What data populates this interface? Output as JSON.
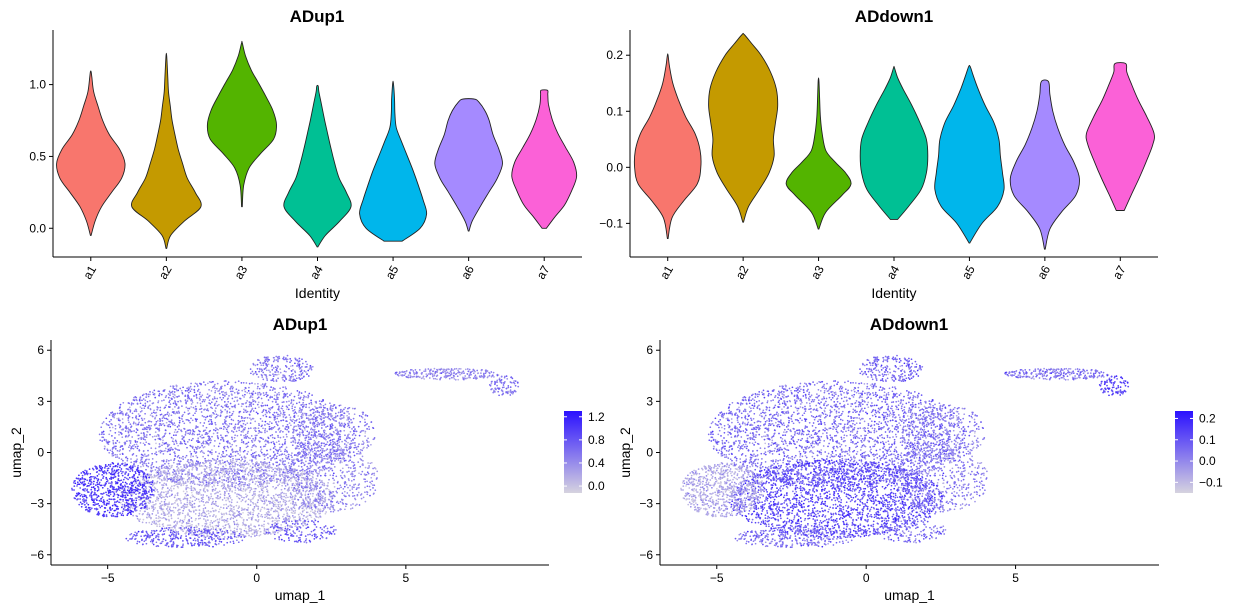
{
  "chart_data": [
    {
      "type": "violin",
      "title": "ADup1",
      "xlabel": "Identity",
      "ylabel": "",
      "ylim": [
        -0.2,
        1.38
      ],
      "yticks": [
        "0.0",
        "0.5",
        "1.0"
      ],
      "ytick_values": [
        0.0,
        0.5,
        1.0
      ],
      "categories": [
        "a1",
        "a2",
        "a3",
        "a4",
        "a5",
        "a6",
        "a7"
      ],
      "colors": [
        "#F8766D",
        "#C49A00",
        "#53B400",
        "#00C094",
        "#00B6EB",
        "#A58AFF",
        "#FB61D7"
      ],
      "violins": [
        {
          "label": "a1",
          "min": -0.05,
          "max": 1.09,
          "profile": [
            [
              -0.05,
              0.01
            ],
            [
              0.05,
              0.12
            ],
            [
              0.15,
              0.3
            ],
            [
              0.25,
              0.58
            ],
            [
              0.35,
              0.86
            ],
            [
              0.45,
              0.95
            ],
            [
              0.55,
              0.8
            ],
            [
              0.65,
              0.52
            ],
            [
              0.75,
              0.33
            ],
            [
              0.85,
              0.2
            ],
            [
              0.95,
              0.08
            ],
            [
              1.05,
              0.03
            ],
            [
              1.09,
              0.01
            ]
          ]
        },
        {
          "label": "a2",
          "min": -0.14,
          "max": 1.2,
          "profile": [
            [
              -0.14,
              0.01
            ],
            [
              -0.05,
              0.12
            ],
            [
              0.05,
              0.5
            ],
            [
              0.15,
              0.96
            ],
            [
              0.25,
              0.8
            ],
            [
              0.35,
              0.58
            ],
            [
              0.45,
              0.45
            ],
            [
              0.55,
              0.33
            ],
            [
              0.65,
              0.24
            ],
            [
              0.75,
              0.16
            ],
            [
              0.85,
              0.11
            ],
            [
              0.95,
              0.06
            ],
            [
              1.05,
              0.04
            ],
            [
              1.2,
              0.01
            ]
          ]
        },
        {
          "label": "a3",
          "min": 0.15,
          "max": 1.29,
          "profile": [
            [
              0.15,
              0.01
            ],
            [
              0.3,
              0.05
            ],
            [
              0.42,
              0.2
            ],
            [
              0.52,
              0.52
            ],
            [
              0.62,
              0.88
            ],
            [
              0.72,
              0.96
            ],
            [
              0.82,
              0.86
            ],
            [
              0.92,
              0.66
            ],
            [
              1.02,
              0.44
            ],
            [
              1.1,
              0.26
            ],
            [
              1.2,
              0.1
            ],
            [
              1.29,
              0.01
            ]
          ]
        },
        {
          "label": "a4",
          "min": -0.13,
          "max": 0.99,
          "profile": [
            [
              -0.13,
              0.01
            ],
            [
              -0.05,
              0.22
            ],
            [
              0.05,
              0.62
            ],
            [
              0.15,
              0.93
            ],
            [
              0.25,
              0.8
            ],
            [
              0.35,
              0.6
            ],
            [
              0.45,
              0.48
            ],
            [
              0.55,
              0.38
            ],
            [
              0.65,
              0.29
            ],
            [
              0.75,
              0.2
            ],
            [
              0.85,
              0.12
            ],
            [
              0.95,
              0.04
            ],
            [
              0.99,
              0.02
            ]
          ]
        },
        {
          "label": "a5",
          "min": -0.09,
          "max": 1.01,
          "profile": [
            [
              -0.09,
              0.25
            ],
            [
              0.0,
              0.75
            ],
            [
              0.1,
              0.93
            ],
            [
              0.2,
              0.83
            ],
            [
              0.3,
              0.7
            ],
            [
              0.4,
              0.56
            ],
            [
              0.5,
              0.4
            ],
            [
              0.6,
              0.24
            ],
            [
              0.7,
              0.09
            ],
            [
              0.8,
              0.05
            ],
            [
              0.9,
              0.04
            ],
            [
              1.01,
              0.01
            ]
          ]
        },
        {
          "label": "a6",
          "min": -0.02,
          "max": 0.9,
          "profile": [
            [
              -0.02,
              0.01
            ],
            [
              0.05,
              0.1
            ],
            [
              0.15,
              0.32
            ],
            [
              0.25,
              0.56
            ],
            [
              0.35,
              0.8
            ],
            [
              0.45,
              0.94
            ],
            [
              0.55,
              0.84
            ],
            [
              0.65,
              0.68
            ],
            [
              0.75,
              0.57
            ],
            [
              0.82,
              0.45
            ],
            [
              0.88,
              0.28
            ],
            [
              0.9,
              0.15
            ]
          ]
        },
        {
          "label": "a7",
          "min": 0.0,
          "max": 0.96,
          "profile": [
            [
              0.0,
              0.06
            ],
            [
              0.08,
              0.3
            ],
            [
              0.16,
              0.56
            ],
            [
              0.26,
              0.76
            ],
            [
              0.36,
              0.9
            ],
            [
              0.46,
              0.82
            ],
            [
              0.56,
              0.6
            ],
            [
              0.66,
              0.38
            ],
            [
              0.76,
              0.22
            ],
            [
              0.86,
              0.12
            ],
            [
              0.93,
              0.1
            ],
            [
              0.96,
              0.09
            ]
          ]
        }
      ]
    },
    {
      "type": "violin",
      "title": "ADdown1",
      "xlabel": "Identity",
      "ylabel": "",
      "ylim": [
        -0.16,
        0.245
      ],
      "yticks": [
        "−0.1",
        "0.0",
        "0.1",
        "0.2"
      ],
      "ytick_values": [
        -0.1,
        0.0,
        0.1,
        0.2
      ],
      "categories": [
        "a1",
        "a2",
        "a3",
        "a4",
        "a5",
        "a6",
        "a7"
      ],
      "colors": [
        "#F8766D",
        "#C49A00",
        "#53B400",
        "#00C094",
        "#00B6EB",
        "#A58AFF",
        "#FB61D7"
      ],
      "violins": [
        {
          "label": "a1",
          "min": -0.127,
          "max": 0.2,
          "profile": [
            [
              -0.127,
              0.01
            ],
            [
              -0.09,
              0.12
            ],
            [
              -0.06,
              0.44
            ],
            [
              -0.03,
              0.82
            ],
            [
              0.0,
              0.92
            ],
            [
              0.03,
              0.9
            ],
            [
              0.06,
              0.76
            ],
            [
              0.09,
              0.5
            ],
            [
              0.12,
              0.3
            ],
            [
              0.15,
              0.14
            ],
            [
              0.18,
              0.05
            ],
            [
              0.2,
              0.01
            ]
          ]
        },
        {
          "label": "a2",
          "min": -0.098,
          "max": 0.237,
          "profile": [
            [
              -0.098,
              0.01
            ],
            [
              -0.07,
              0.15
            ],
            [
              -0.04,
              0.45
            ],
            [
              -0.01,
              0.72
            ],
            [
              0.02,
              0.86
            ],
            [
              0.05,
              0.84
            ],
            [
              0.08,
              0.9
            ],
            [
              0.11,
              0.96
            ],
            [
              0.14,
              0.92
            ],
            [
              0.17,
              0.76
            ],
            [
              0.2,
              0.5
            ],
            [
              0.22,
              0.25
            ],
            [
              0.237,
              0.03
            ]
          ]
        },
        {
          "label": "a3",
          "min": -0.11,
          "max": 0.155,
          "profile": [
            [
              -0.11,
              0.01
            ],
            [
              -0.08,
              0.2
            ],
            [
              -0.05,
              0.65
            ],
            [
              -0.03,
              0.9
            ],
            [
              -0.01,
              0.75
            ],
            [
              0.01,
              0.45
            ],
            [
              0.03,
              0.2
            ],
            [
              0.06,
              0.1
            ],
            [
              0.09,
              0.05
            ],
            [
              0.12,
              0.03
            ],
            [
              0.155,
              0.01
            ]
          ]
        },
        {
          "label": "a4",
          "min": -0.093,
          "max": 0.178,
          "profile": [
            [
              -0.093,
              0.1
            ],
            [
              -0.07,
              0.4
            ],
            [
              -0.04,
              0.75
            ],
            [
              -0.01,
              0.9
            ],
            [
              0.02,
              0.94
            ],
            [
              0.05,
              0.9
            ],
            [
              0.08,
              0.72
            ],
            [
              0.11,
              0.5
            ],
            [
              0.14,
              0.25
            ],
            [
              0.16,
              0.1
            ],
            [
              0.178,
              0.01
            ]
          ]
        },
        {
          "label": "a5",
          "min": -0.135,
          "max": 0.18,
          "profile": [
            [
              -0.135,
              0.01
            ],
            [
              -0.1,
              0.35
            ],
            [
              -0.07,
              0.78
            ],
            [
              -0.04,
              0.96
            ],
            [
              -0.01,
              0.92
            ],
            [
              0.02,
              0.86
            ],
            [
              0.05,
              0.82
            ],
            [
              0.08,
              0.68
            ],
            [
              0.11,
              0.44
            ],
            [
              0.14,
              0.24
            ],
            [
              0.165,
              0.1
            ],
            [
              0.18,
              0.02
            ]
          ]
        },
        {
          "label": "a6",
          "min": -0.146,
          "max": 0.153,
          "profile": [
            [
              -0.146,
              0.01
            ],
            [
              -0.11,
              0.14
            ],
            [
              -0.08,
              0.46
            ],
            [
              -0.05,
              0.86
            ],
            [
              -0.02,
              0.96
            ],
            [
              0.01,
              0.8
            ],
            [
              0.04,
              0.55
            ],
            [
              0.07,
              0.36
            ],
            [
              0.1,
              0.22
            ],
            [
              0.13,
              0.14
            ],
            [
              0.153,
              0.1
            ]
          ]
        },
        {
          "label": "a7",
          "min": -0.077,
          "max": 0.185,
          "profile": [
            [
              -0.077,
              0.11
            ],
            [
              -0.05,
              0.3
            ],
            [
              -0.02,
              0.52
            ],
            [
              0.01,
              0.72
            ],
            [
              0.04,
              0.9
            ],
            [
              0.06,
              0.94
            ],
            [
              0.09,
              0.74
            ],
            [
              0.12,
              0.5
            ],
            [
              0.15,
              0.3
            ],
            [
              0.17,
              0.18
            ],
            [
              0.185,
              0.15
            ]
          ]
        }
      ]
    },
    {
      "type": "scatter",
      "title": "ADup1",
      "xlabel": "umap_1",
      "ylabel": "umap_2",
      "xlim": [
        -6.9,
        9.8
      ],
      "ylim": [
        -6.6,
        6.6
      ],
      "xticks": [
        "−5",
        "0",
        "5"
      ],
      "xtick_values": [
        -5,
        0,
        5
      ],
      "yticks": [
        "−6",
        "−3",
        "0",
        "3",
        "6"
      ],
      "ytick_values": [
        -6,
        -3,
        0,
        3,
        6
      ],
      "legend": {
        "position": "right",
        "ticks": [
          "0.0",
          "0.4",
          "0.8",
          "1.2"
        ],
        "tick_values": [
          0.0,
          0.4,
          0.8,
          1.2
        ],
        "min": -0.12,
        "max": 1.3,
        "low_color": "#d6d3df",
        "high_color": "#2b11ff"
      },
      "regions": [
        {
          "cx": -1.0,
          "cy": 1.1,
          "rx": 4.3,
          "ry": 3.1,
          "n": 2600,
          "vmean": 0.55,
          "vsd": 0.18
        },
        {
          "cx": 0.8,
          "cy": 4.9,
          "rx": 1.1,
          "ry": 0.8,
          "n": 220,
          "vmean": 0.55,
          "vsd": 0.18
        },
        {
          "cx": -1.0,
          "cy": -2.7,
          "rx": 3.6,
          "ry": 2.3,
          "n": 2200,
          "vmean": 0.15,
          "vsd": 0.15
        },
        {
          "cx": 2.5,
          "cy": -1.5,
          "rx": 1.6,
          "ry": 2.0,
          "n": 500,
          "vmean": 0.45,
          "vsd": 0.18
        },
        {
          "cx": 2.6,
          "cy": 1.2,
          "rx": 1.4,
          "ry": 1.6,
          "n": 350,
          "vmean": 0.5,
          "vsd": 0.18
        },
        {
          "cx": -4.8,
          "cy": -2.2,
          "rx": 1.4,
          "ry": 1.6,
          "n": 750,
          "vmean": 1.0,
          "vsd": 0.15
        },
        {
          "cx": -2.4,
          "cy": -5.0,
          "rx": 2.0,
          "ry": 0.6,
          "n": 300,
          "vmean": 0.75,
          "vsd": 0.15
        },
        {
          "cx": 1.5,
          "cy": -4.6,
          "rx": 1.2,
          "ry": 0.7,
          "n": 150,
          "vmean": 0.75,
          "vsd": 0.15
        },
        {
          "cx": 6.4,
          "cy": 4.6,
          "rx": 1.8,
          "ry": 0.35,
          "n": 260,
          "vmean": 0.45,
          "vsd": 0.15
        },
        {
          "cx": 8.3,
          "cy": 3.9,
          "rx": 0.5,
          "ry": 0.6,
          "n": 90,
          "vmean": 0.55,
          "vsd": 0.15
        }
      ]
    },
    {
      "type": "scatter",
      "title": "ADdown1",
      "xlabel": "umap_1",
      "ylabel": "umap_2",
      "xlim": [
        -6.9,
        9.8
      ],
      "ylim": [
        -6.6,
        6.6
      ],
      "xticks": [
        "−5",
        "0",
        "5"
      ],
      "xtick_values": [
        -5,
        0,
        5
      ],
      "yticks": [
        "−6",
        "−3",
        "0",
        "3",
        "6"
      ],
      "ytick_values": [
        -6,
        -3,
        0,
        3,
        6
      ],
      "legend": {
        "position": "right",
        "ticks": [
          "−0.1",
          "0.0",
          "0.1",
          "0.2"
        ],
        "tick_values": [
          -0.1,
          0.0,
          0.1,
          0.2
        ],
        "min": -0.15,
        "max": 0.235,
        "low_color": "#d6d3df",
        "high_color": "#2b11ff"
      },
      "regions": [
        {
          "cx": -1.0,
          "cy": 1.1,
          "rx": 4.3,
          "ry": 3.1,
          "n": 2600,
          "vmean": 0.05,
          "vsd": 0.05
        },
        {
          "cx": 0.8,
          "cy": 4.9,
          "rx": 1.1,
          "ry": 0.8,
          "n": 220,
          "vmean": 0.06,
          "vsd": 0.05
        },
        {
          "cx": -1.0,
          "cy": -2.7,
          "rx": 3.6,
          "ry": 2.3,
          "n": 2200,
          "vmean": 0.12,
          "vsd": 0.05
        },
        {
          "cx": 2.5,
          "cy": -1.5,
          "rx": 1.6,
          "ry": 2.0,
          "n": 500,
          "vmean": 0.02,
          "vsd": 0.05
        },
        {
          "cx": 2.6,
          "cy": 1.2,
          "rx": 1.4,
          "ry": 1.6,
          "n": 350,
          "vmean": 0.02,
          "vsd": 0.05
        },
        {
          "cx": -4.8,
          "cy": -2.2,
          "rx": 1.4,
          "ry": 1.6,
          "n": 750,
          "vmean": -0.06,
          "vsd": 0.04
        },
        {
          "cx": -2.4,
          "cy": -5.0,
          "rx": 2.0,
          "ry": 0.6,
          "n": 300,
          "vmean": 0.05,
          "vsd": 0.05
        },
        {
          "cx": 1.5,
          "cy": -4.6,
          "rx": 1.2,
          "ry": 0.7,
          "n": 150,
          "vmean": 0.05,
          "vsd": 0.05
        },
        {
          "cx": 6.4,
          "cy": 4.6,
          "rx": 1.8,
          "ry": 0.35,
          "n": 260,
          "vmean": 0.04,
          "vsd": 0.05
        },
        {
          "cx": 8.3,
          "cy": 3.9,
          "rx": 0.5,
          "ry": 0.6,
          "n": 90,
          "vmean": 0.13,
          "vsd": 0.04
        }
      ]
    }
  ]
}
